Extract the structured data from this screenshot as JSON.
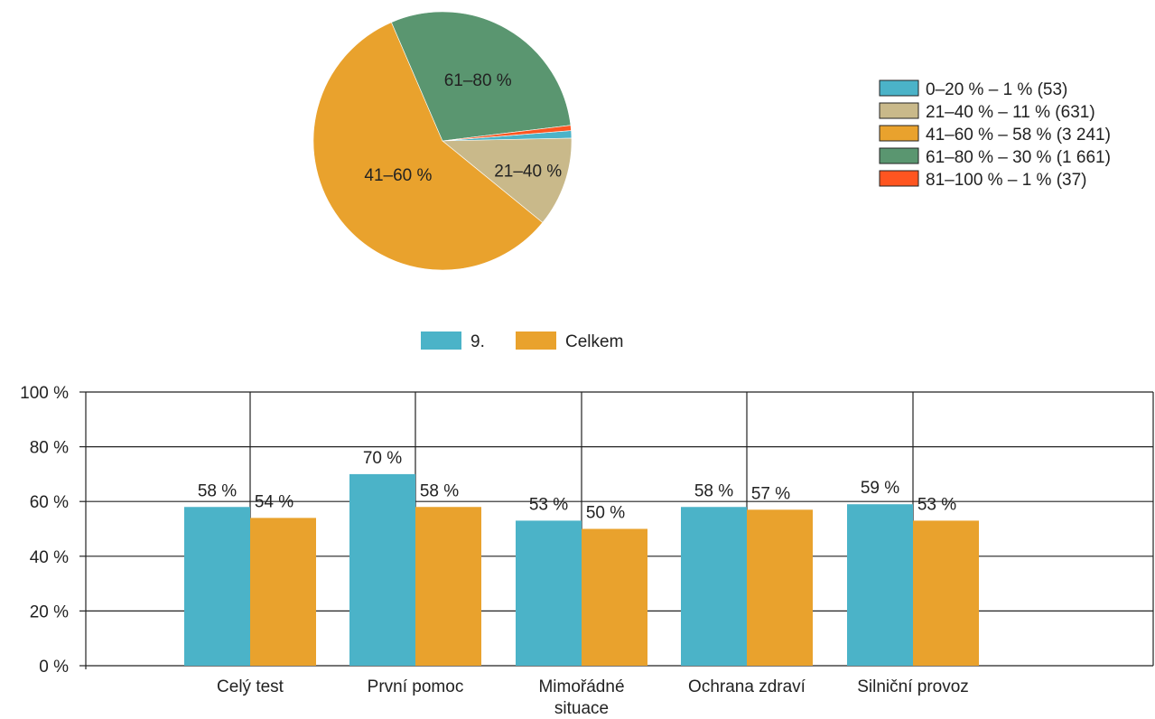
{
  "chart_data": [
    {
      "type": "pie",
      "slices": [
        {
          "label": "0–20 %",
          "legend": "0–20 % – 1 % (53)",
          "value": 53,
          "color": "#4BB3C8"
        },
        {
          "label": "21–40 %",
          "legend": "21–40 % – 11 % (631)",
          "value": 631,
          "color": "#C9B98A"
        },
        {
          "label": "41–60 %",
          "legend": "41–60 % – 58 % (3 241)",
          "value": 3241,
          "color": "#E9A22D"
        },
        {
          "label": "61–80 %",
          "legend": "61–80 % – 30 % (1 661)",
          "value": 1661,
          "color": "#5A9670"
        },
        {
          "label": "81–100 %",
          "legend": "81–100 % – 1 % (37)",
          "value": 37,
          "color": "#FF5520"
        }
      ],
      "slice_labels_shown": [
        "21–40 %",
        "41–60 %",
        "61–80 %"
      ],
      "legend_position": "right"
    },
    {
      "type": "bar",
      "categories": [
        "Celý test",
        "První pomoc",
        "Mimořádné situace",
        "Ochrana zdraví",
        "Silniční provoz"
      ],
      "series": [
        {
          "name": "9.",
          "values": [
            58,
            70,
            53,
            58,
            59
          ],
          "color": "#4BB3C8"
        },
        {
          "name": "Celkem",
          "values": [
            54,
            58,
            50,
            57,
            53
          ],
          "color": "#E9A22D"
        }
      ],
      "data_labels": [
        [
          "58 %",
          "70 %",
          "53 %",
          "58 %",
          "59 %"
        ],
        [
          "54 %",
          "58 %",
          "50 %",
          "57 %",
          "53 %"
        ]
      ],
      "yticks": [
        "0 %",
        "20 %",
        "40 %",
        "60 %",
        "80 %",
        "100 %"
      ],
      "ylim": [
        0,
        100
      ],
      "grid": true,
      "legend_position": "top"
    }
  ]
}
